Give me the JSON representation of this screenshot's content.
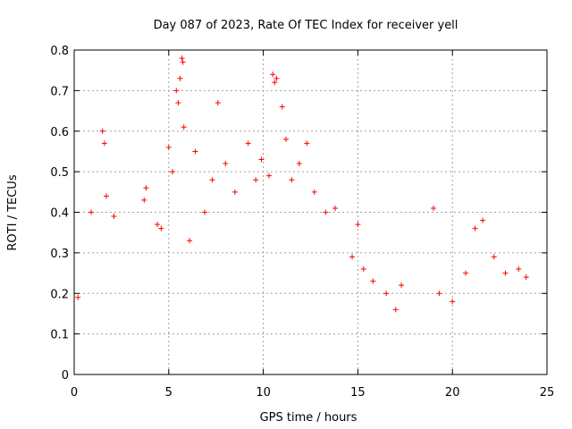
{
  "chart_data": {
    "type": "scatter",
    "title": "Day 087 of 2023, Rate Of TEC Index for receiver yell",
    "xlabel": "GPS time / hours",
    "ylabel": "ROTI / TECUs",
    "xlim": [
      0,
      25
    ],
    "ylim": [
      0,
      0.8
    ],
    "x_ticks": [
      0,
      5,
      10,
      15,
      20,
      25
    ],
    "x_tick_labels": [
      "0",
      "5",
      "10",
      "15",
      "20",
      "25"
    ],
    "y_ticks": [
      0,
      0.1,
      0.2,
      0.3,
      0.4,
      0.5,
      0.6,
      0.7,
      0.8
    ],
    "y_tick_labels": [
      "0",
      "0.1",
      "0.2",
      "0.3",
      "0.4",
      "0.5",
      "0.6",
      "0.7",
      "0.8"
    ],
    "grid": true,
    "marker": "+",
    "color": "#ff0000",
    "data_gap_hours": [
      17.5,
      18.8
    ],
    "x": [
      0.2,
      0.9,
      1.5,
      1.6,
      1.7,
      2.1,
      3.7,
      3.8,
      4.4,
      4.6,
      5.0,
      5.2,
      5.4,
      5.5,
      5.6,
      5.7,
      5.75,
      5.8,
      6.1,
      6.4,
      6.9,
      7.3,
      7.6,
      8.0,
      8.5,
      9.2,
      9.6,
      9.9,
      10.3,
      10.5,
      10.6,
      10.7,
      11.0,
      11.2,
      11.5,
      11.9,
      12.3,
      12.7,
      13.3,
      13.8,
      14.7,
      15.0,
      15.3,
      15.8,
      16.5,
      17.0,
      17.3,
      19.0,
      19.3,
      20.0,
      20.7,
      21.2,
      21.6,
      22.2,
      22.8,
      23.5,
      23.9
    ],
    "y": [
      0.19,
      0.4,
      0.6,
      0.57,
      0.44,
      0.39,
      0.43,
      0.46,
      0.37,
      0.36,
      0.56,
      0.5,
      0.7,
      0.67,
      0.73,
      0.78,
      0.77,
      0.61,
      0.33,
      0.55,
      0.4,
      0.48,
      0.67,
      0.52,
      0.45,
      0.57,
      0.48,
      0.53,
      0.49,
      0.74,
      0.72,
      0.73,
      0.66,
      0.58,
      0.48,
      0.52,
      0.57,
      0.45,
      0.4,
      0.41,
      0.29,
      0.37,
      0.26,
      0.23,
      0.2,
      0.16,
      0.22,
      0.41,
      0.2,
      0.18,
      0.25,
      0.36,
      0.38,
      0.29,
      0.25,
      0.26,
      0.24
    ]
  }
}
